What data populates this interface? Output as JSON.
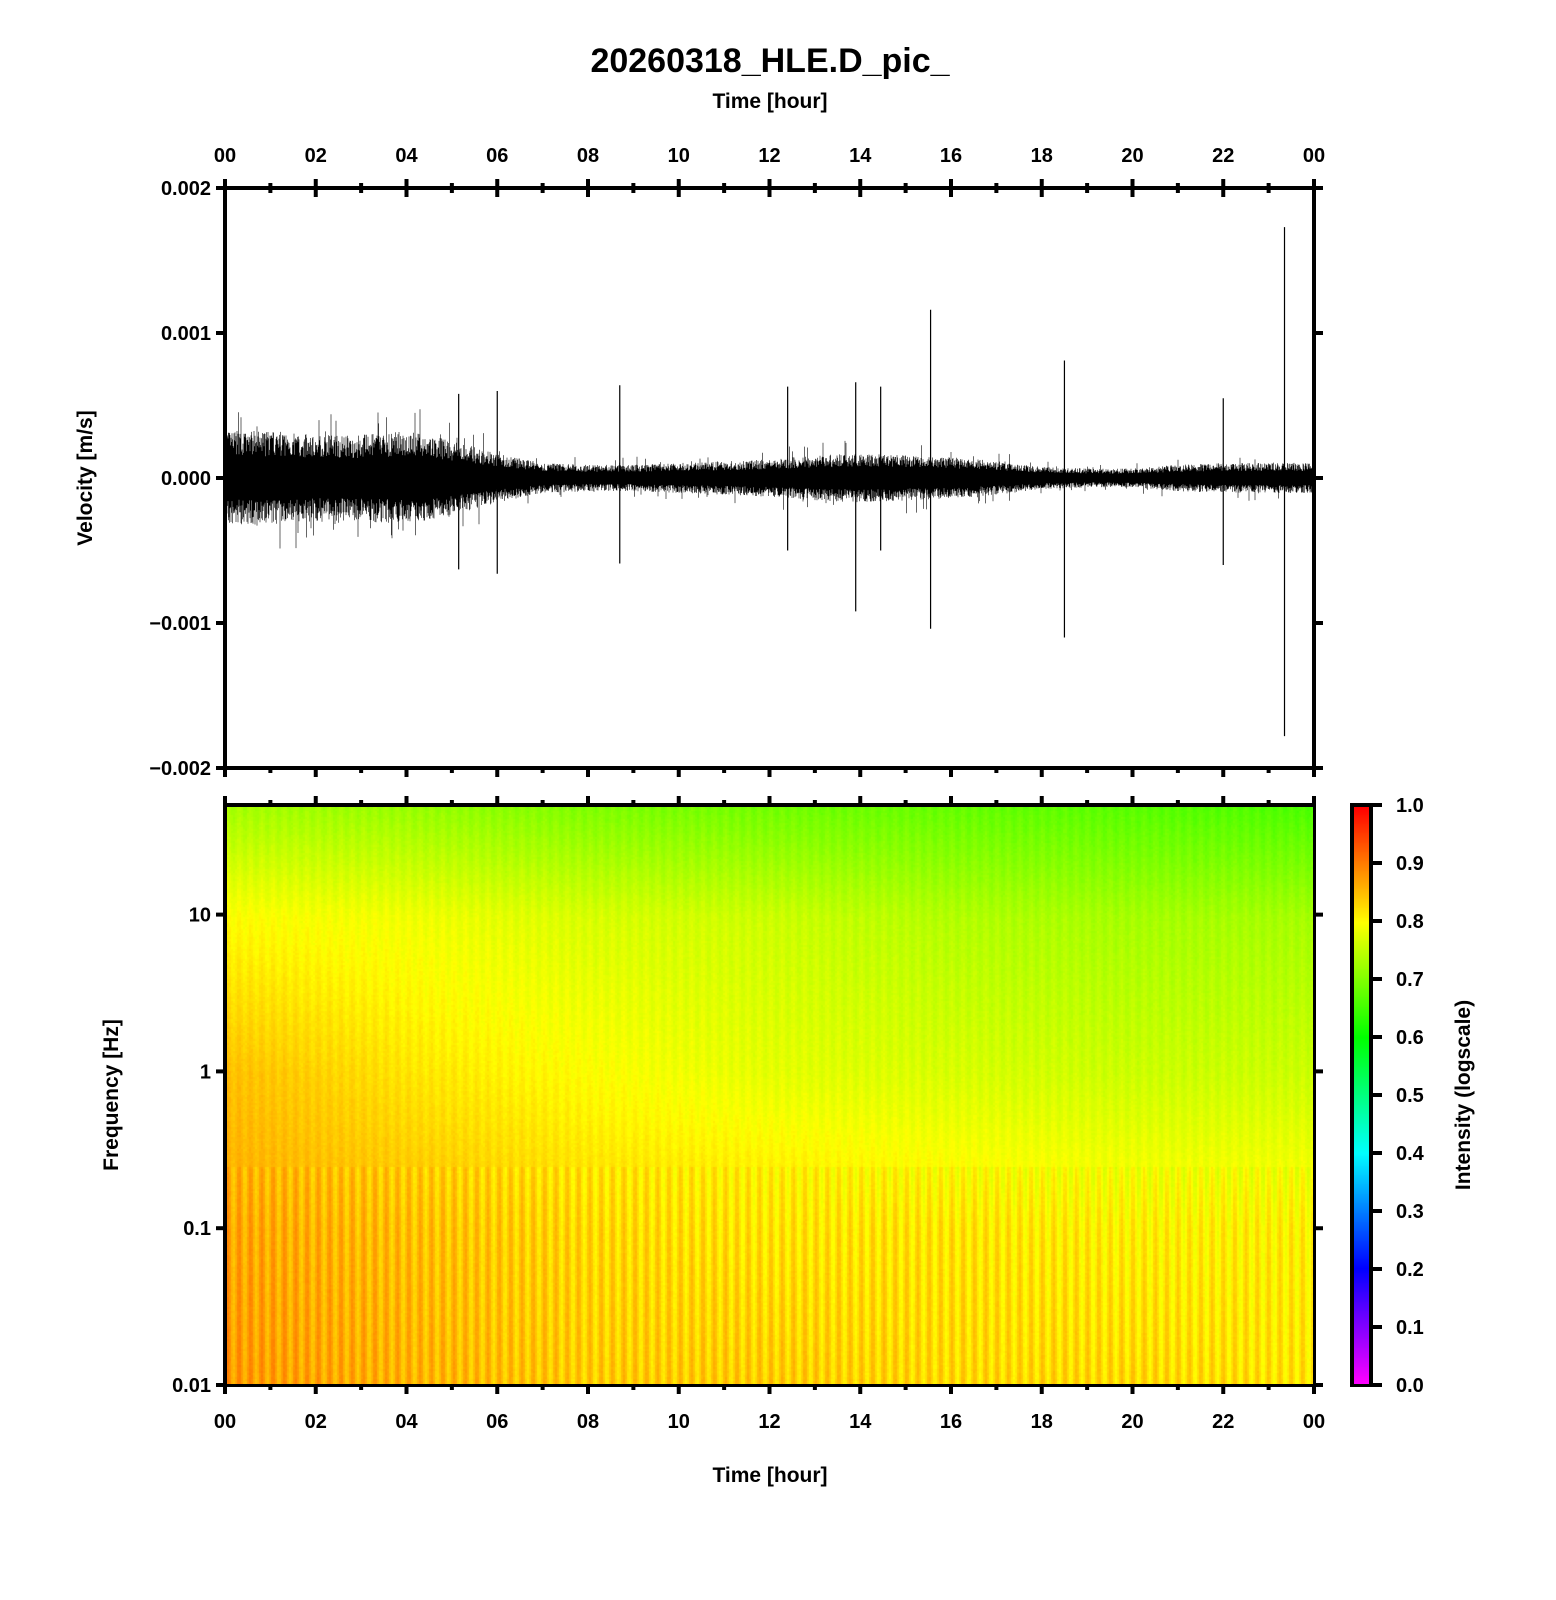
{
  "chart_data": [
    {
      "type": "line",
      "panel": "waveform",
      "title": "20260318_HLE.D_pic_",
      "top_xlabel": "Time [hour]",
      "xlabel": "",
      "ylabel": "Velocity [m/s]",
      "xlim": [
        0,
        24
      ],
      "ylim": [
        -0.002,
        0.002
      ],
      "xticks": [
        "00",
        "02",
        "04",
        "06",
        "08",
        "10",
        "12",
        "14",
        "16",
        "18",
        "20",
        "22",
        "00"
      ],
      "yticks": [
        {
          "value": 0.002,
          "label": "0.002"
        },
        {
          "value": 0.001,
          "label": "0.001"
        },
        {
          "value": 0.0,
          "label": "0.000"
        },
        {
          "value": -0.001,
          "label": "−0.001"
        },
        {
          "value": -0.002,
          "label": "−0.002"
        }
      ],
      "envelope_hours": [
        0,
        1,
        2,
        3,
        4,
        5,
        6,
        7,
        8,
        9,
        10,
        11,
        12,
        13,
        14,
        15,
        16,
        17,
        18,
        19,
        20,
        21,
        22,
        23,
        24
      ],
      "envelope_amplitude": [
        0.00025,
        0.00025,
        0.00023,
        0.00023,
        0.00025,
        0.0002,
        0.00013,
        8e-05,
        7e-05,
        7e-05,
        8e-05,
        9e-05,
        0.0001,
        0.00012,
        0.00013,
        0.00012,
        0.00011,
        9e-05,
        6e-05,
        5e-05,
        5e-05,
        7e-05,
        8e-05,
        8e-05,
        8e-05
      ],
      "spikes": [
        {
          "hour": 23.35,
          "max": 0.00173,
          "min": -0.00178
        },
        {
          "hour": 15.55,
          "max": 0.00116,
          "min": -0.00104
        },
        {
          "hour": 18.5,
          "max": 0.00081,
          "min": -0.0011
        },
        {
          "hour": 13.9,
          "max": 0.00066,
          "min": -0.00092
        },
        {
          "hour": 8.7,
          "max": 0.00064,
          "min": -0.00059
        },
        {
          "hour": 22.0,
          "max": 0.00055,
          "min": -0.0006
        },
        {
          "hour": 14.45,
          "max": 0.00063,
          "min": -0.0005
        },
        {
          "hour": 12.4,
          "max": 0.00063,
          "min": -0.0005
        },
        {
          "hour": 6.0,
          "max": 0.0006,
          "min": -0.00066
        },
        {
          "hour": 5.15,
          "max": 0.00058,
          "min": -0.00063
        }
      ]
    },
    {
      "type": "heatmap",
      "panel": "spectrogram",
      "xlabel": "Time [hour]",
      "ylabel": "Frequency [Hz]",
      "colorbar_label": "Intensity (logscale)",
      "xlim": [
        0,
        24
      ],
      "ylim": [
        0.01,
        50
      ],
      "yscale": "log",
      "xticks": [
        "00",
        "02",
        "04",
        "06",
        "08",
        "10",
        "12",
        "14",
        "16",
        "18",
        "20",
        "22",
        "00"
      ],
      "yticks": [
        {
          "value": 10,
          "label": "10"
        },
        {
          "value": 1,
          "label": "1"
        },
        {
          "value": 0.1,
          "label": "0.1"
        },
        {
          "value": 0.01,
          "label": "0.01"
        }
      ],
      "colorbar_ticks": [
        "0.0",
        "0.1",
        "0.2",
        "0.3",
        "0.4",
        "0.5",
        "0.6",
        "0.7",
        "0.8",
        "0.9",
        "1.0"
      ],
      "clim": [
        0,
        1
      ],
      "grid_hours": [
        0,
        4,
        8,
        12,
        16,
        20,
        24
      ],
      "grid_freqs": [
        0.01,
        0.1,
        0.25,
        1,
        10,
        50
      ],
      "intensity": [
        [
          0.88,
          0.86,
          0.84,
          0.84,
          0.83,
          0.83,
          0.82
        ],
        [
          0.87,
          0.85,
          0.83,
          0.82,
          0.82,
          0.81,
          0.81
        ],
        [
          0.86,
          0.84,
          0.82,
          0.81,
          0.8,
          0.79,
          0.79
        ],
        [
          0.85,
          0.82,
          0.8,
          0.78,
          0.77,
          0.76,
          0.76
        ],
        [
          0.8,
          0.79,
          0.77,
          0.76,
          0.74,
          0.73,
          0.73
        ],
        [
          0.73,
          0.72,
          0.7,
          0.69,
          0.68,
          0.67,
          0.66
        ]
      ]
    }
  ]
}
